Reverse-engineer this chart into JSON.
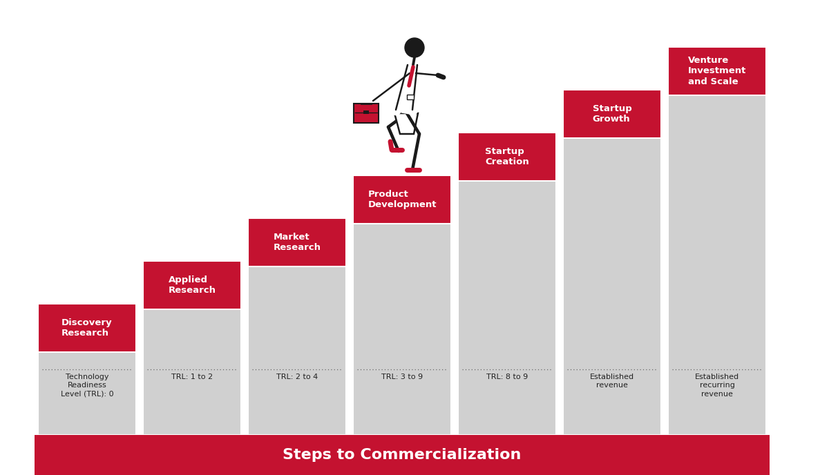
{
  "title": "Steps to Commercialization",
  "title_color": "#ffffff",
  "title_bg_color": "#c41230",
  "background_color": "#ffffff",
  "bar_color": "#d0d0d0",
  "header_color": "#c41230",
  "header_text_color": "#ffffff",
  "steps": [
    {
      "label": "Discovery\nResearch",
      "subtitle": "Technology\nReadiness\nLevel (TRL): 0"
    },
    {
      "label": "Applied\nResearch",
      "subtitle": "TRL: 1 to 2"
    },
    {
      "label": "Market\nResearch",
      "subtitle": "TRL: 2 to 4"
    },
    {
      "label": "Product\nDevelopment",
      "subtitle": "TRL: 3 to 9"
    },
    {
      "label": "Startup\nCreation",
      "subtitle": "TRL: 8 to 9"
    },
    {
      "label": "Startup\nGrowth",
      "subtitle": "Established\nrevenue"
    },
    {
      "label": "Venture\nInvestment\nand Scale",
      "subtitle": "Established\nrecurring\nrevenue"
    }
  ],
  "n_steps": 7,
  "figure_width": 12.0,
  "figure_height": 6.88
}
